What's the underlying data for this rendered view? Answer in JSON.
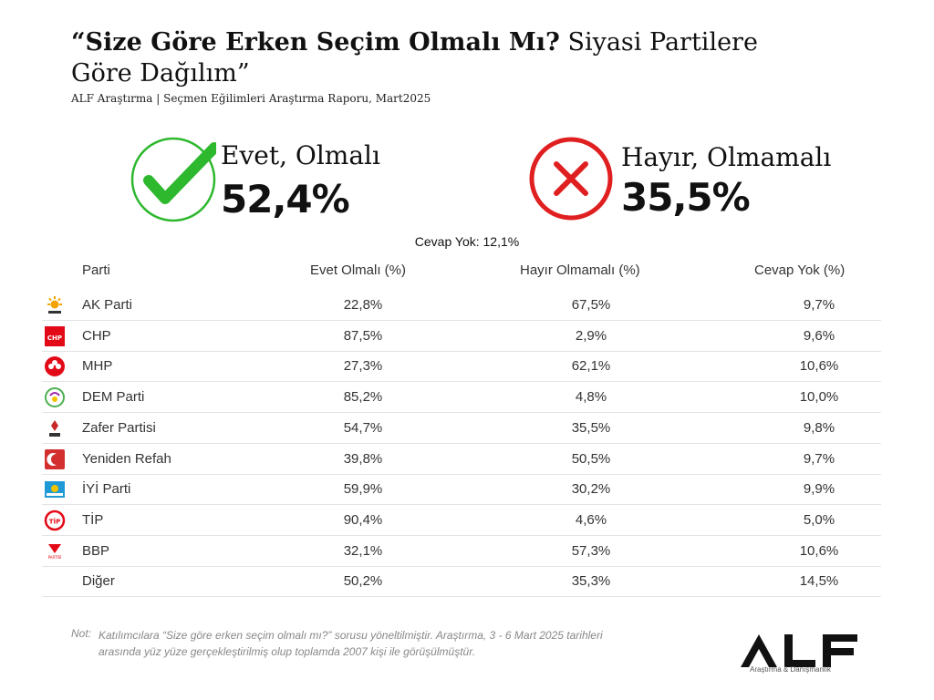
{
  "header": {
    "title_bold": "“Size Göre Erken Seçim Olmalı Mı?",
    "title_light": " Siyasi Partilere Göre Dağılım”",
    "subtitle": "ALF Araştırma | Seçmen Eğilimleri Araştırma Raporu, Mart2025"
  },
  "summary": {
    "yes_label": "Evet, Olmalı",
    "yes_value": "52,4%",
    "no_label": "Hayır, Olmamalı",
    "no_value": "35,5%",
    "no_answer": "Cevap Yok: 12,1%"
  },
  "table": {
    "headers": [
      "Parti",
      "Evet Olmalı (%)",
      "Hayır Olmamalı (%)",
      "Cevap Yok (%)"
    ],
    "rows": [
      {
        "party": "AK Parti",
        "yes": "22,8%",
        "no": "67,5%",
        "none": "9,7%",
        "logo": "ak-parti-logo"
      },
      {
        "party": "CHP",
        "yes": "87,5%",
        "no": "2,9%",
        "none": "9,6%",
        "logo": "chp-logo"
      },
      {
        "party": "MHP",
        "yes": "27,3%",
        "no": "62,1%",
        "none": "10,6%",
        "logo": "mhp-logo"
      },
      {
        "party": "DEM Parti",
        "yes": "85,2%",
        "no": "4,8%",
        "none": "10,0%",
        "logo": "dem-parti-logo"
      },
      {
        "party": "Zafer Partisi",
        "yes": "54,7%",
        "no": "35,5%",
        "none": "9,8%",
        "logo": "zafer-partisi-logo"
      },
      {
        "party": "Yeniden Refah",
        "yes": "39,8%",
        "no": "50,5%",
        "none": "9,7%",
        "logo": "yeniden-refah-logo"
      },
      {
        "party": "İYİ Parti",
        "yes": "59,9%",
        "no": "30,2%",
        "none": "9,9%",
        "logo": "iyi-parti-logo"
      },
      {
        "party": "TİP",
        "yes": "90,4%",
        "no": "4,6%",
        "none": "5,0%",
        "logo": "tip-logo"
      },
      {
        "party": "BBP",
        "yes": "32,1%",
        "no": "57,3%",
        "none": "10,6%",
        "logo": "bbp-logo"
      },
      {
        "party": "Diğer",
        "yes": "50,2%",
        "no": "35,3%",
        "none": "14,5%",
        "logo": ""
      }
    ]
  },
  "footer": {
    "note_label": "Not:",
    "note_text": "Katılımcılara “Size göre erken seçim olmalı mı?” sorusu yöneltilmiştir.  Araştırma, 3 - 6 Mart 2025 tarihleri arasında yüz yüze gerçekleştirilmiş olup toplamda 2007 kişi ile görüşülmüştür.",
    "brand": "ALF",
    "brand_sub": "Araştırma & Danışmanlık"
  },
  "colors": {
    "yes": "#2eb82e",
    "no": "#e02020"
  }
}
